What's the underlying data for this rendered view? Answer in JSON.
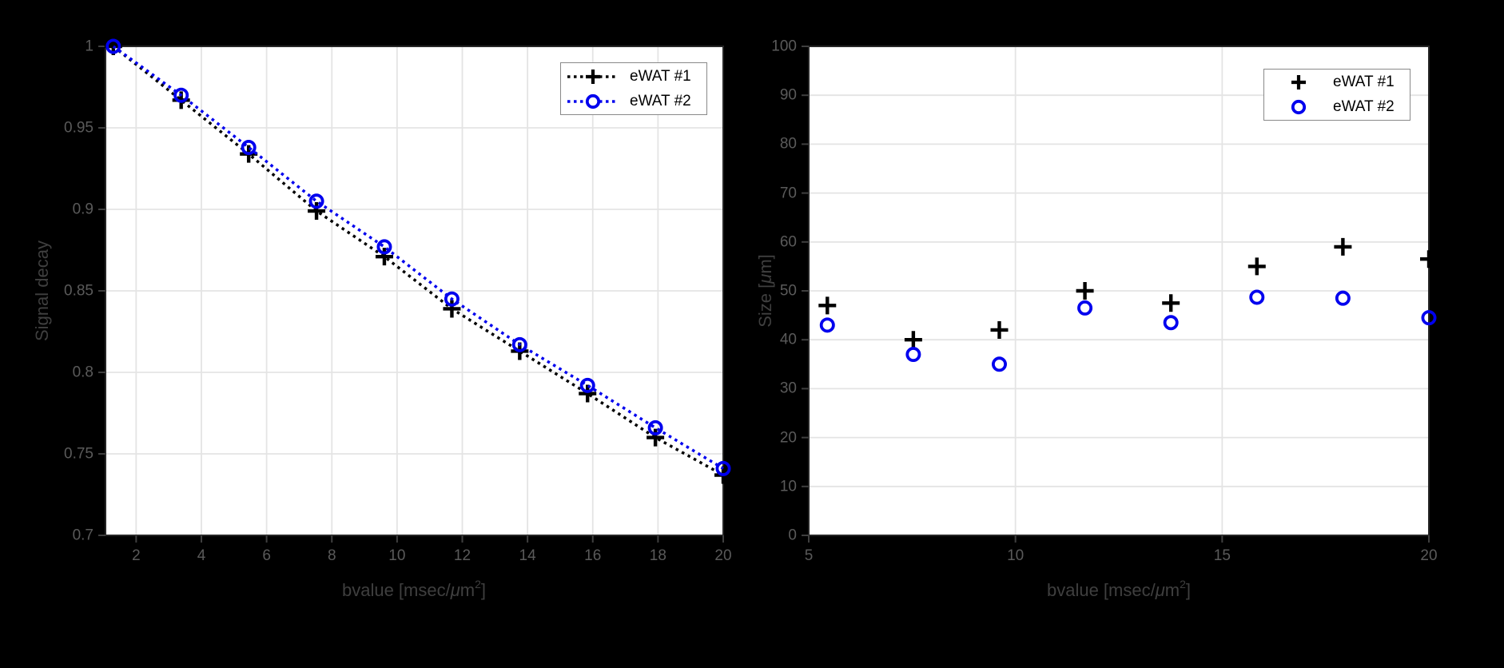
{
  "figure": {
    "background": "#000000"
  },
  "colors": {
    "series1": "#000000",
    "series2": "#0000ee"
  },
  "left_plot": {
    "ylabel": "Signal decay",
    "xlabel": {
      "pre": "bvalue [msec/",
      "mu": "μ",
      "unit": "m",
      "exp": "2",
      "post": "]"
    },
    "legend": [
      {
        "label": "eWAT #1"
      },
      {
        "label": "eWAT #2"
      }
    ]
  },
  "right_plot": {
    "ylabel": {
      "pre": "Size [",
      "mu": "μ",
      "post": "m]"
    },
    "xlabel": {
      "pre": "bvalue [msec/",
      "mu": "μ",
      "unit": "m",
      "exp": "2",
      "post": "]"
    },
    "legend": [
      {
        "label": "eWAT #1"
      },
      {
        "label": "eWAT #2"
      }
    ]
  },
  "chart_data": [
    {
      "type": "line",
      "plot": "left",
      "title": "",
      "xlabel": "bvalue [msec/um^2]",
      "ylabel": "Signal decay",
      "line_style": "dotted",
      "grid": true,
      "legend_position": "upper right",
      "xlim": [
        1.06,
        20
      ],
      "ylim": [
        0.7,
        1.0
      ],
      "xticks": [
        2,
        4,
        6,
        8,
        10,
        12,
        14,
        16,
        18,
        20
      ],
      "xtick_labels": [
        "2",
        "4",
        "6",
        "8",
        "10",
        "12",
        "14",
        "16",
        "18",
        "20"
      ],
      "yticks": [
        0.7,
        0.75,
        0.8,
        0.85,
        0.9,
        0.95,
        1.0
      ],
      "ytick_labels": [
        "0.7",
        "0.75",
        "0.8",
        "0.85",
        "0.9",
        "0.95",
        "1"
      ],
      "x": [
        1.3,
        3.38,
        5.45,
        7.53,
        9.61,
        11.68,
        13.76,
        15.84,
        17.92,
        20.0
      ],
      "series": [
        {
          "name": "eWAT #1",
          "marker": "plus",
          "color_key": "series1",
          "show_line": true,
          "values": [
            1.0,
            0.967,
            0.934,
            0.899,
            0.871,
            0.839,
            0.813,
            0.787,
            0.76,
            0.737
          ]
        },
        {
          "name": "eWAT #2",
          "marker": "circle",
          "color_key": "series2",
          "show_line": true,
          "values": [
            1.0,
            0.97,
            0.938,
            0.905,
            0.877,
            0.845,
            0.817,
            0.792,
            0.766,
            0.741
          ]
        }
      ]
    },
    {
      "type": "scatter",
      "plot": "right",
      "title": "",
      "xlabel": "bvalue [msec/um^2]",
      "ylabel": "Size [um]",
      "grid": true,
      "legend_position": "upper right",
      "xlim": [
        5,
        20
      ],
      "ylim": [
        0,
        100
      ],
      "xticks": [
        5,
        10,
        15,
        20
      ],
      "xtick_labels": [
        "5",
        "10",
        "15",
        "20"
      ],
      "yticks": [
        0,
        10,
        20,
        30,
        40,
        50,
        60,
        70,
        80,
        90,
        100
      ],
      "ytick_labels": [
        "0",
        "10",
        "20",
        "30",
        "40",
        "50",
        "60",
        "70",
        "80",
        "90",
        "100"
      ],
      "x": [
        5.45,
        7.53,
        9.61,
        11.68,
        13.76,
        15.84,
        17.92,
        20.0
      ],
      "series": [
        {
          "name": "eWAT #1",
          "marker": "plus",
          "color_key": "series1",
          "show_line": false,
          "values": [
            47,
            40,
            42,
            50,
            47.5,
            55,
            59,
            56.5
          ]
        },
        {
          "name": "eWAT #2",
          "marker": "circle",
          "color_key": "series2",
          "show_line": false,
          "values": [
            43,
            37,
            35,
            46.5,
            43.5,
            48.7,
            48.5,
            44.5
          ]
        }
      ]
    }
  ]
}
